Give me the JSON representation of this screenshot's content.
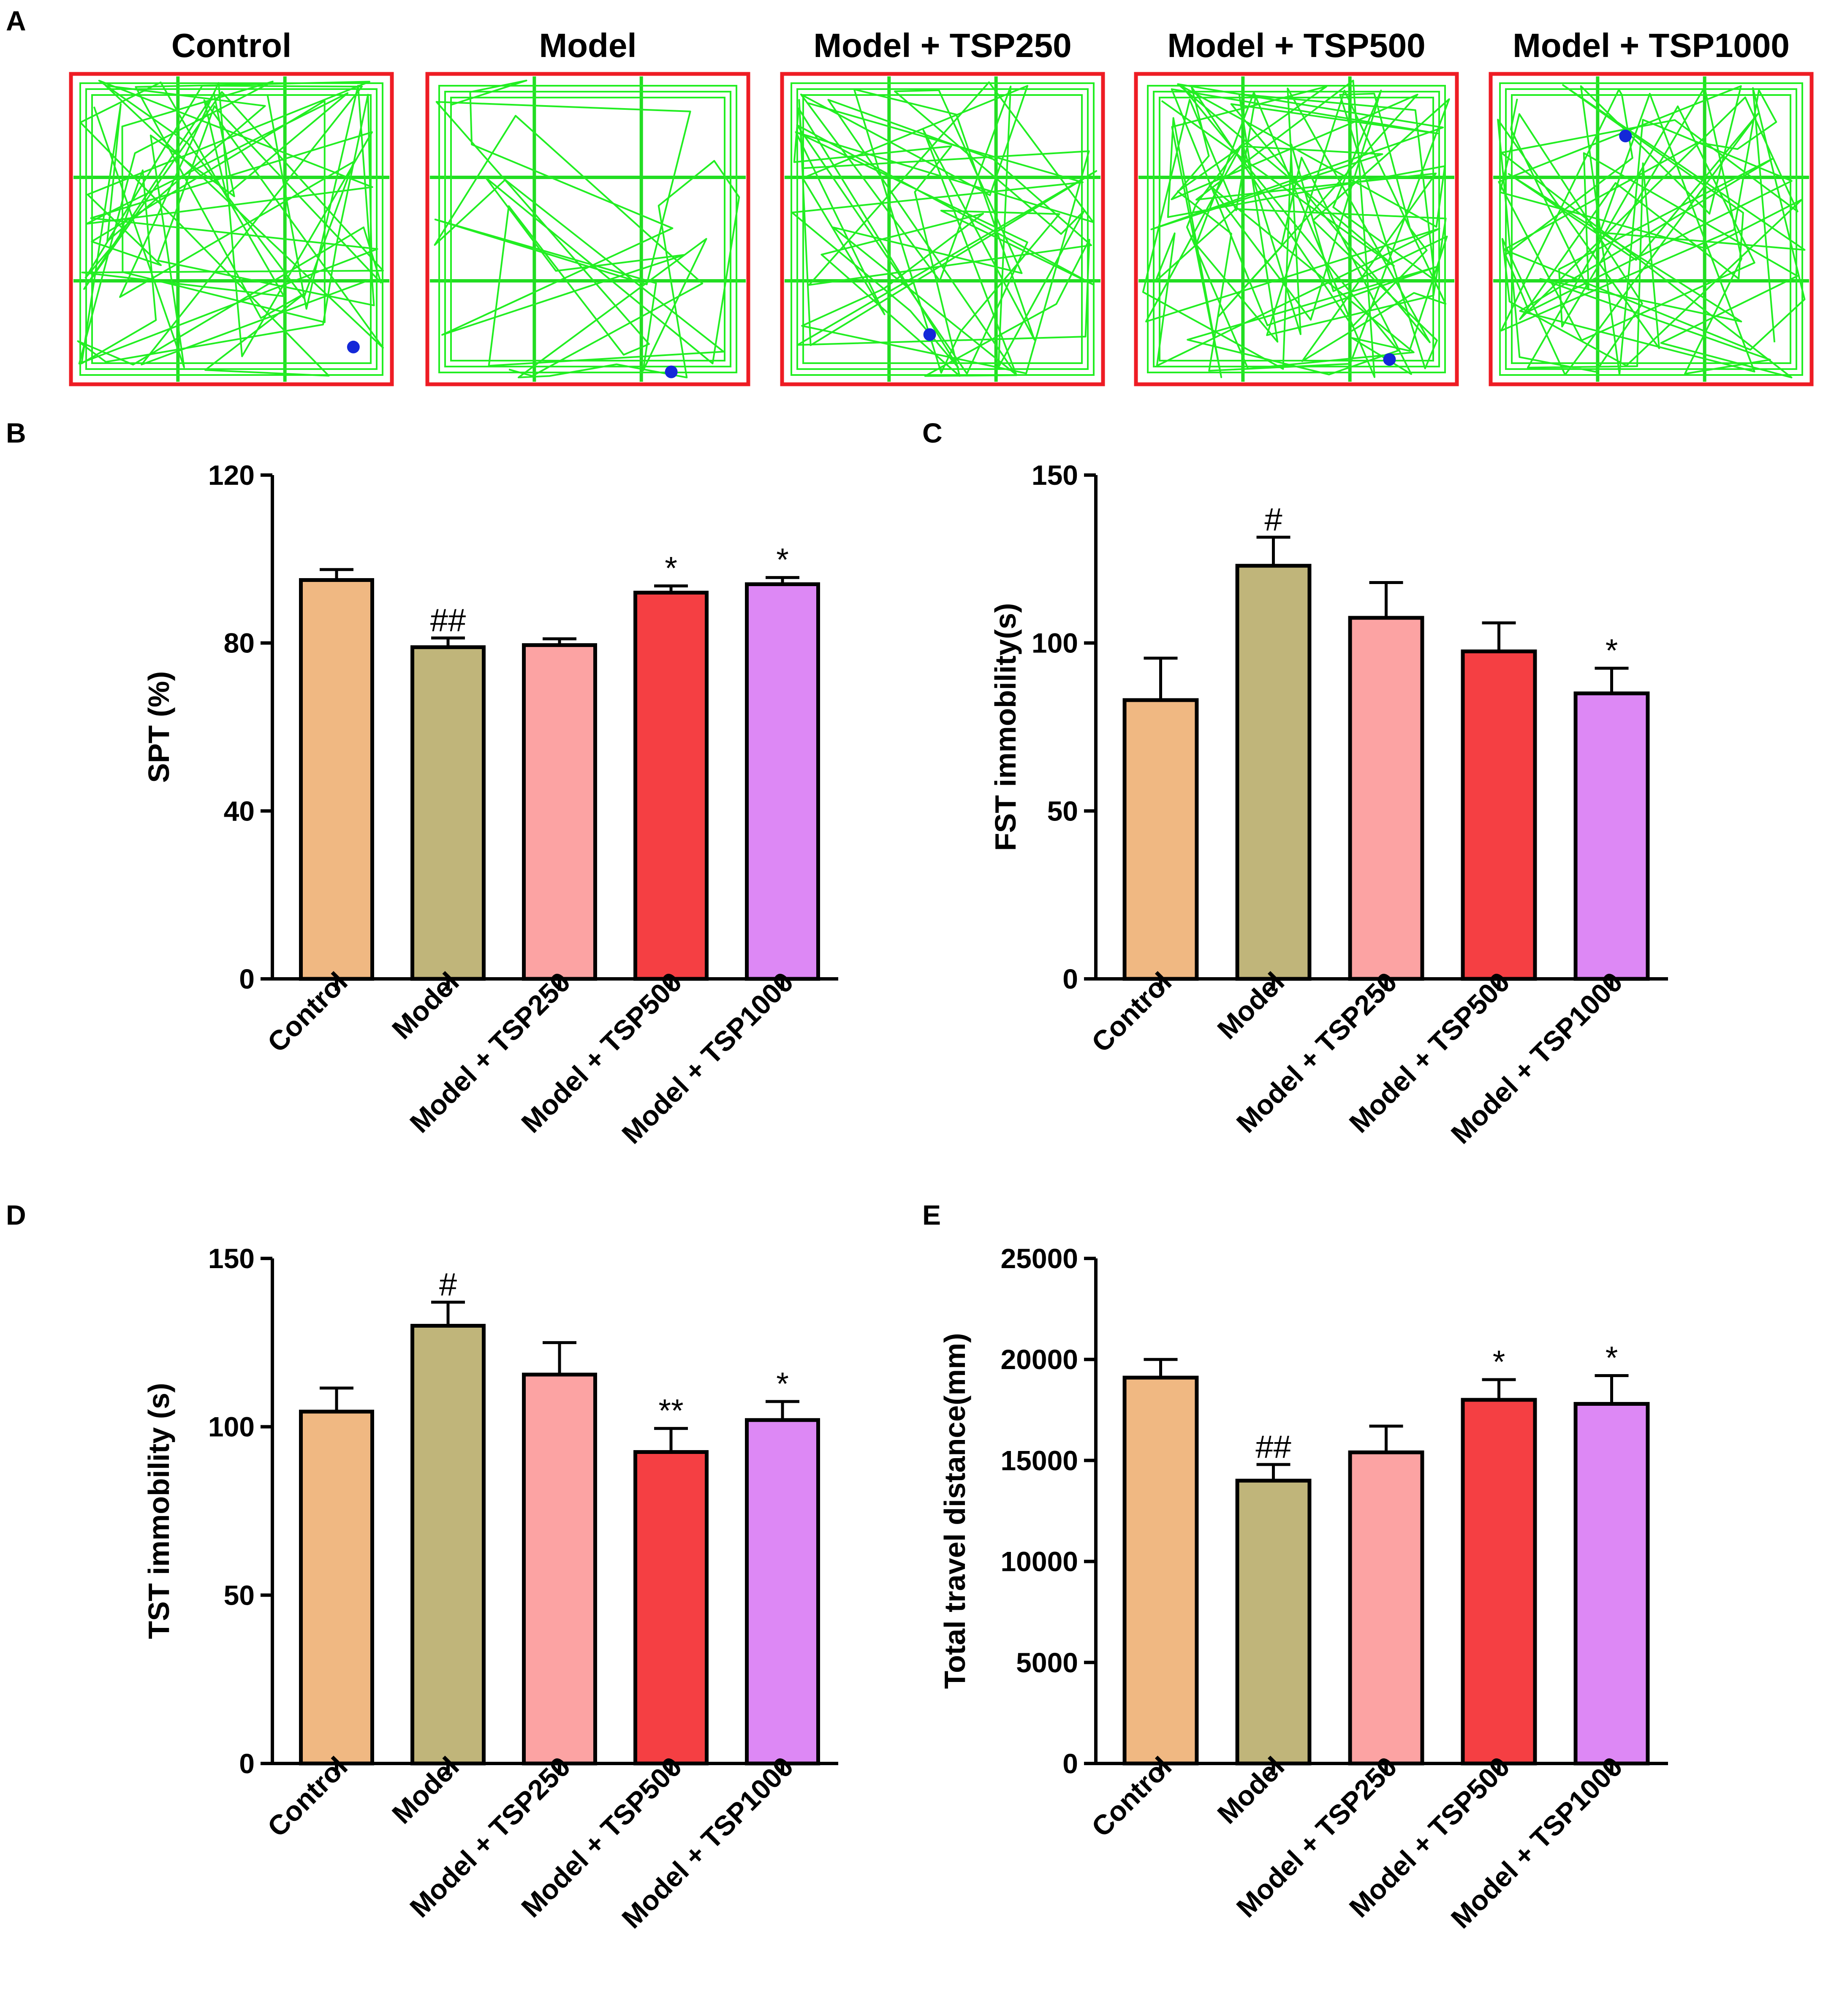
{
  "panels": {
    "A": "A",
    "B": "B",
    "C": "C",
    "D": "D",
    "E": "E"
  },
  "open_field": {
    "titles": [
      "Control",
      "Model",
      "Model + TSP250",
      "Model + TSP500",
      "Model + TSP1000"
    ],
    "colors": {
      "frame": "#ee1c24",
      "track": "#22ee22",
      "grid": "#22dd22",
      "marker": "#1428d8"
    }
  },
  "colors": {
    "bars": [
      "#f0b882",
      "#c0b57a",
      "#fca3a3",
      "#f53f43",
      "#dd88f5"
    ]
  },
  "chart_data": [
    {
      "panel": "B",
      "type": "bar",
      "categories": [
        "Control",
        "Model",
        "Model + TSP250",
        "Model + TSP500",
        "Model + TSP1000"
      ],
      "values": [
        95,
        79,
        79.5,
        92,
        94
      ],
      "errors": [
        2.5,
        2.2,
        1.5,
        1.6,
        1.6
      ],
      "significance": [
        "",
        "##",
        "",
        "*",
        "*"
      ],
      "ylabel": "SPT (%)",
      "ylim": [
        0,
        120
      ],
      "yticks": [
        0,
        40,
        80,
        120
      ]
    },
    {
      "panel": "C",
      "type": "bar",
      "categories": [
        "Control",
        "Model",
        "Model + TSP250",
        "Model + TSP500",
        "Model + TSP1000"
      ],
      "values": [
        83,
        123,
        107.5,
        97.5,
        85
      ],
      "errors": [
        12.5,
        8.5,
        10.5,
        8.5,
        7.5
      ],
      "significance": [
        "",
        "#",
        "",
        "",
        "*"
      ],
      "ylabel": "FST immobility(s)",
      "ylim": [
        0,
        150
      ],
      "yticks": [
        0,
        50,
        100,
        150
      ]
    },
    {
      "panel": "D",
      "type": "bar",
      "categories": [
        "Control",
        "Model",
        "Model + TSP250",
        "Model + TSP500",
        "Model + TSP1000"
      ],
      "values": [
        104.5,
        130,
        115.5,
        92.5,
        102
      ],
      "errors": [
        7,
        7,
        9.5,
        7,
        5.5
      ],
      "significance": [
        "",
        "#",
        "",
        "**",
        "*"
      ],
      "ylabel": "TST immobility (s)",
      "ylim": [
        0,
        150
      ],
      "yticks": [
        0,
        50,
        100,
        150
      ]
    },
    {
      "panel": "E",
      "type": "bar",
      "categories": [
        "Control",
        "Model",
        "Model + TSP250",
        "Model + TSP500",
        "Model + TSP1000"
      ],
      "values": [
        19100,
        14000,
        15400,
        18000,
        17800
      ],
      "errors": [
        900,
        800,
        1300,
        1000,
        1400
      ],
      "significance": [
        "",
        "##",
        "",
        "*",
        "*"
      ],
      "ylabel": "Total travel distance(mm)",
      "ylim": [
        0,
        25000
      ],
      "yticks": [
        0,
        5000,
        10000,
        15000,
        20000,
        25000
      ]
    }
  ]
}
